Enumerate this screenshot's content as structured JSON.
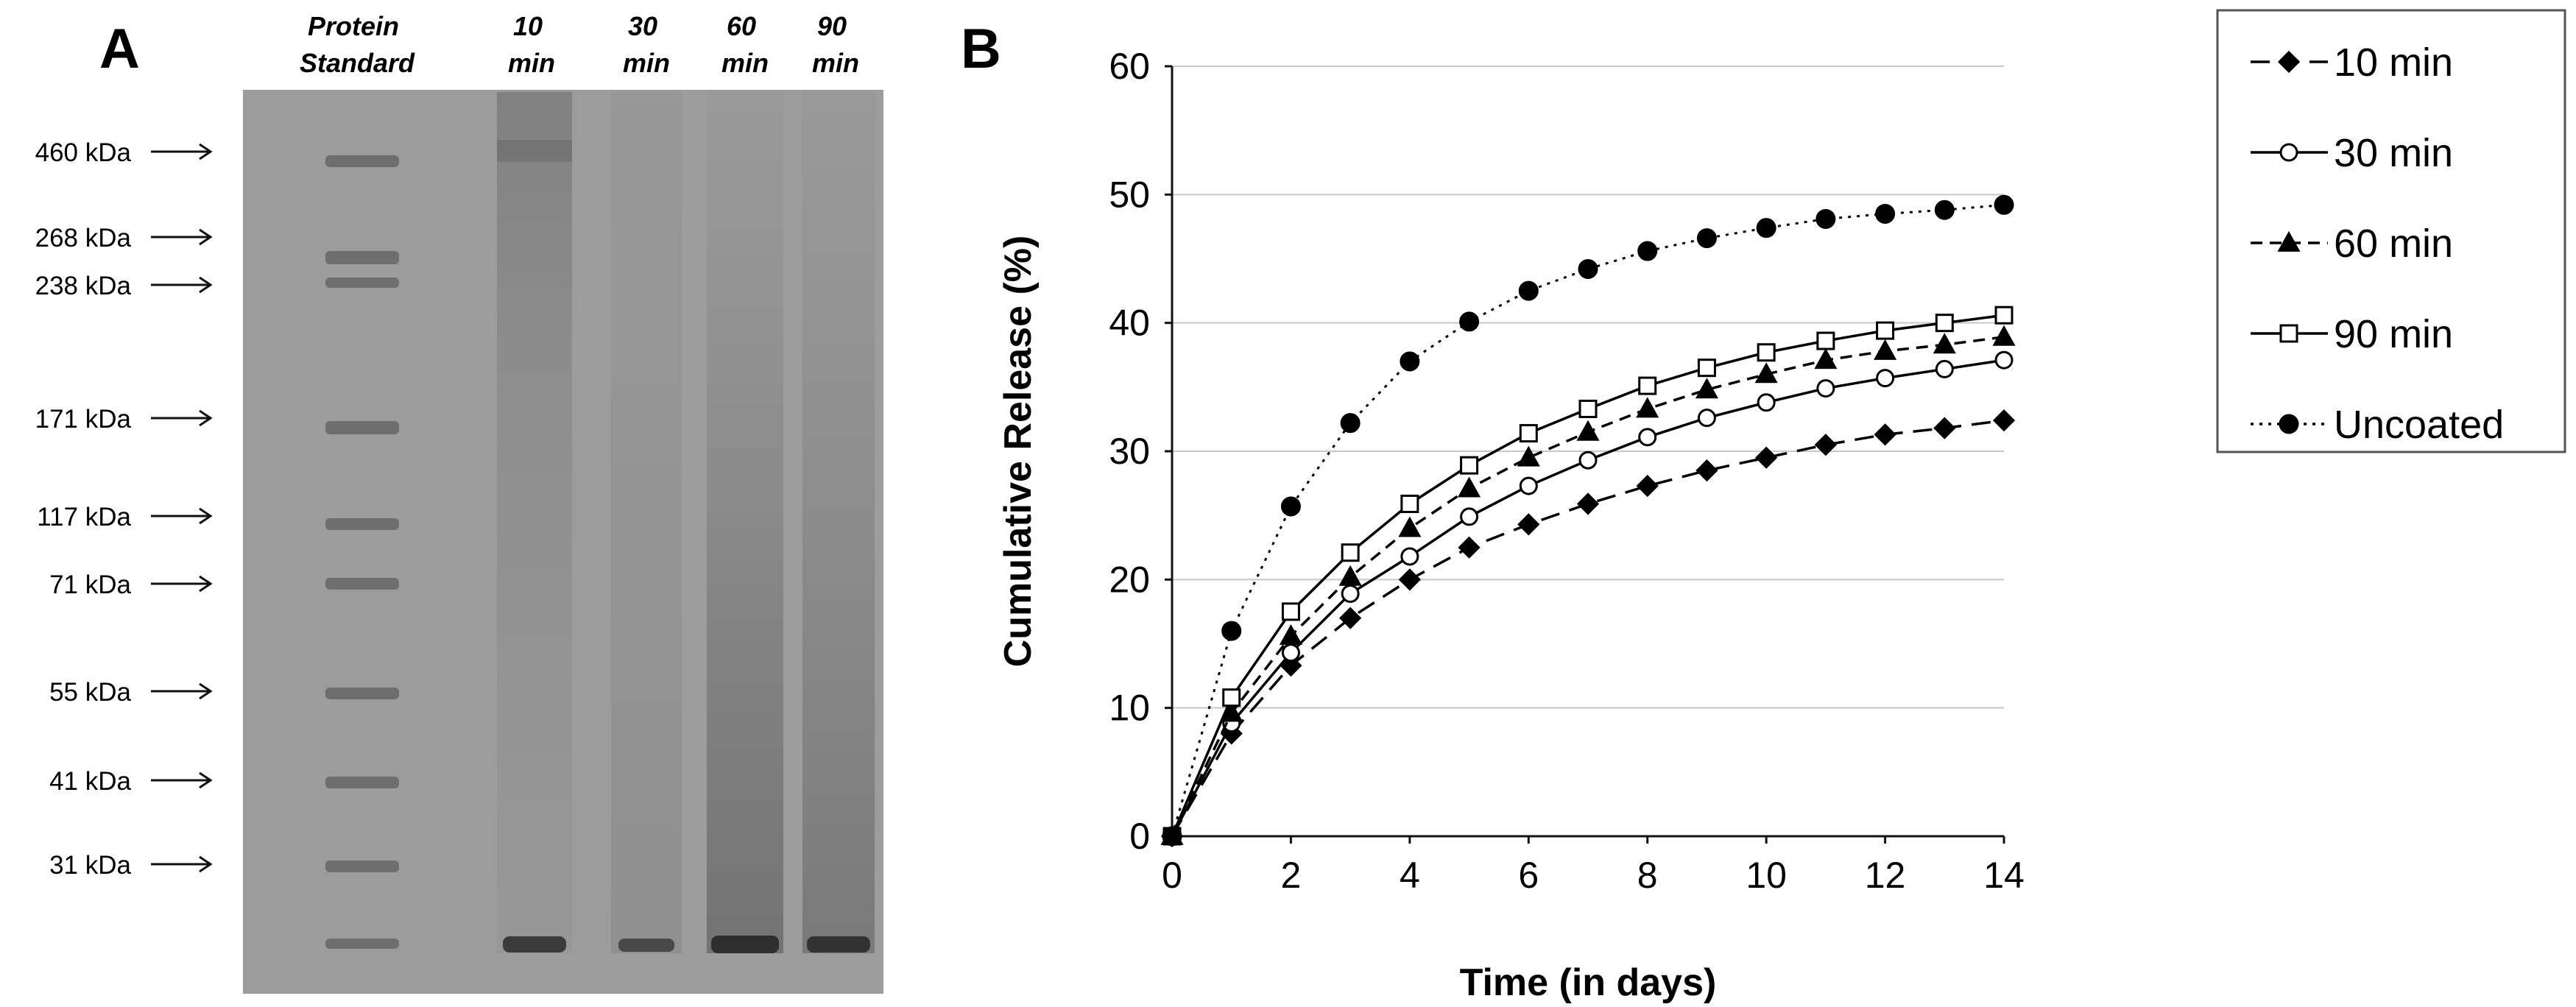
{
  "panel_a": {
    "label": "A",
    "lanes": [
      {
        "lines": [
          "Protein",
          "Standard"
        ]
      },
      {
        "lines": [
          "10",
          "min"
        ]
      },
      {
        "lines": [
          "30",
          "min"
        ]
      },
      {
        "lines": [
          "60",
          "min"
        ]
      },
      {
        "lines": [
          "90",
          "min"
        ]
      }
    ],
    "markers": [
      {
        "label": "460 kDa"
      },
      {
        "label": "268 kDa"
      },
      {
        "label": "238 kDa"
      },
      {
        "label": "171 kDa"
      },
      {
        "label": "117 kDa"
      },
      {
        "label": "71 kDa"
      },
      {
        "label": "55 kDa"
      },
      {
        "label": "41 kDa"
      },
      {
        "label": "31 kDa"
      }
    ],
    "gel_color": "#9c9c9c"
  },
  "panel_b": {
    "label": "B"
  },
  "chart_data": {
    "type": "line",
    "title": "",
    "xlabel": "Time (in days)",
    "ylabel": "Cumulative Release (%)",
    "xlim": [
      0,
      14
    ],
    "ylim": [
      0,
      60
    ],
    "xticks": [
      0,
      2,
      4,
      6,
      8,
      10,
      12,
      14
    ],
    "yticks": [
      0,
      10,
      20,
      30,
      40,
      50,
      60
    ],
    "grid": "horizontal",
    "legend_position": "right",
    "x": [
      0,
      1,
      2,
      3,
      4,
      5,
      6,
      7,
      8,
      9,
      10,
      11,
      12,
      13,
      14
    ],
    "series": [
      {
        "name": "10 min",
        "marker": "diamond",
        "line": "long-dash",
        "values": [
          0,
          8.0,
          13.3,
          17.0,
          20.0,
          22.5,
          24.3,
          25.9,
          27.3,
          28.5,
          29.5,
          30.5,
          31.3,
          31.8,
          32.4
        ]
      },
      {
        "name": "30 min",
        "marker": "open-circle",
        "line": "solid",
        "values": [
          0,
          8.8,
          14.3,
          18.9,
          21.8,
          24.9,
          27.3,
          29.3,
          31.1,
          32.6,
          33.8,
          34.9,
          35.7,
          36.4,
          37.1
        ]
      },
      {
        "name": "60 min",
        "marker": "triangle",
        "line": "dash",
        "values": [
          0,
          9.6,
          15.6,
          20.2,
          24.0,
          27.1,
          29.5,
          31.5,
          33.3,
          34.8,
          36.0,
          37.1,
          37.8,
          38.3,
          38.9
        ]
      },
      {
        "name": "90 min",
        "marker": "open-square",
        "line": "solid",
        "values": [
          0,
          10.8,
          17.5,
          22.1,
          25.9,
          28.9,
          31.4,
          33.3,
          35.1,
          36.5,
          37.7,
          38.6,
          39.4,
          40.0,
          40.6
        ]
      },
      {
        "name": "Uncoated",
        "marker": "filled-circle",
        "line": "dotted",
        "values": [
          0,
          16.0,
          25.7,
          32.2,
          37.0,
          40.1,
          42.5,
          44.2,
          45.6,
          46.6,
          47.4,
          48.1,
          48.5,
          48.8,
          49.2
        ]
      }
    ]
  }
}
